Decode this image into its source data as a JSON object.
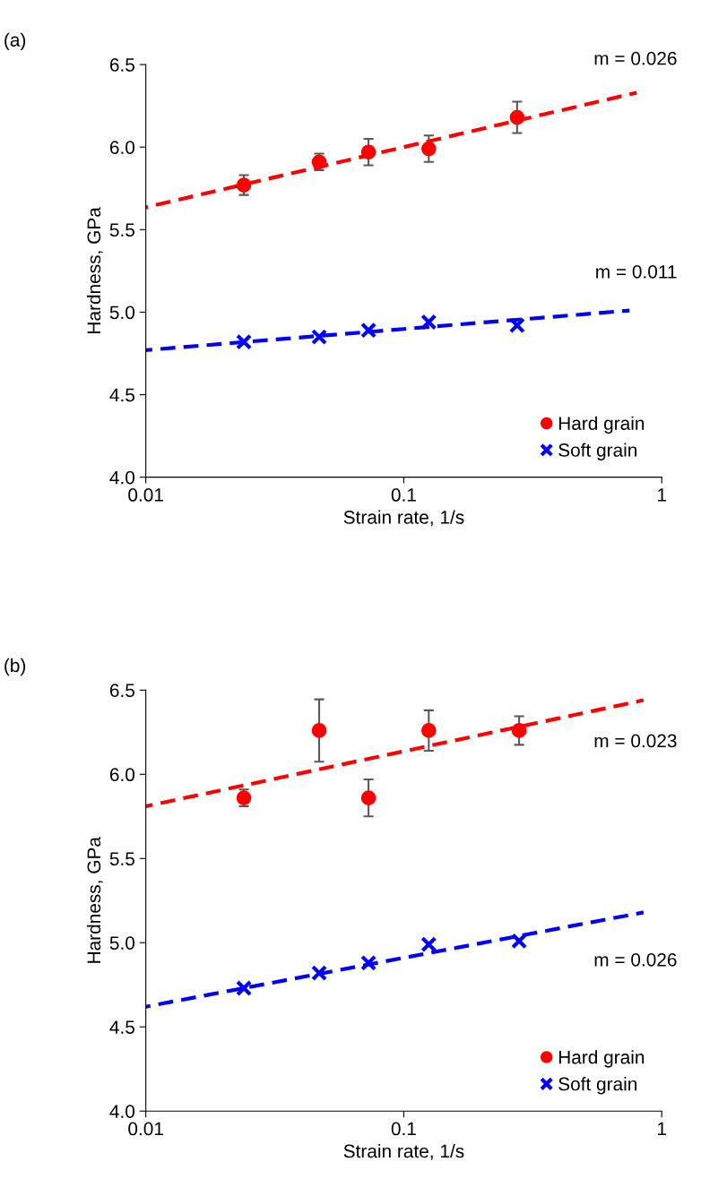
{
  "chart_data": [
    {
      "type": "scatter",
      "title": "(a)",
      "xlabel": "Strain rate, 1/s",
      "ylabel": "Hardness, GPa",
      "log": "x",
      "grid": false,
      "legend": "bottom right",
      "xlim": [
        0.01,
        1
      ],
      "xticks": [
        0.01,
        0.1,
        1
      ],
      "ylim": [
        4.0,
        6.5
      ],
      "yticks": [
        {
          "value": 4.0,
          "label": "4.0"
        },
        {
          "value": 4.5,
          "label": "4.5"
        },
        {
          "value": 5.0,
          "label": "5.0"
        },
        {
          "value": 5.5,
          "label": "5.5"
        },
        {
          "value": 6.0,
          "label": "6.0"
        },
        {
          "value": 6.5,
          "label": "6.5"
        }
      ],
      "x": [
        0.024,
        0.047,
        0.073,
        0.125,
        0.275
      ],
      "series": [
        {
          "name": "Hard grain",
          "marker": "circle",
          "color": "#ff0000",
          "values": [
            5.77,
            5.91,
            5.97,
            5.99,
            6.18
          ],
          "errors": [
            0.06,
            0.05,
            0.08,
            0.08,
            0.095
          ]
        },
        {
          "name": "Soft grain",
          "marker": "cross",
          "color": "#0000ff",
          "values": [
            4.82,
            4.85,
            4.89,
            4.94,
            4.92
          ]
        },
        {
          "type": "line",
          "line_style": "dashed",
          "marker": "none",
          "color": "#ff0000",
          "x": [
            0.01,
            0.8
          ],
          "values": [
            5.635,
            6.33
          ]
        },
        {
          "type": "line",
          "line_style": "dashed",
          "marker": "none",
          "color": "#0000ff",
          "x": [
            0.01,
            0.75
          ],
          "values": [
            4.77,
            5.01
          ]
        }
      ],
      "annotations": [
        "m = 0.026",
        "m = 0.011"
      ]
    },
    {
      "type": "scatter",
      "title": "(b)",
      "xlabel": "Strain rate, 1/s",
      "ylabel": "Hardness, GPa",
      "log": "x",
      "grid": false,
      "legend": "bottom right",
      "xlim": [
        0.01,
        1
      ],
      "xticks": [
        0.01,
        0.1,
        1
      ],
      "ylim": [
        4.0,
        6.5
      ],
      "yticks": [
        {
          "value": 4.0,
          "label": "4.0"
        },
        {
          "value": 4.5,
          "label": "4.5"
        },
        {
          "value": 5.0,
          "label": "5.0"
        },
        {
          "value": 5.5,
          "label": "5.5"
        },
        {
          "value": 6.0,
          "label": "6.0"
        },
        {
          "value": 6.5,
          "label": "6.5"
        }
      ],
      "x": [
        0.024,
        0.047,
        0.073,
        0.125,
        0.28
      ],
      "series": [
        {
          "name": "Hard grain",
          "marker": "circle",
          "color": "#ff0000",
          "values": [
            5.86,
            6.26,
            5.86,
            6.26,
            6.26
          ],
          "errors": [
            0.05,
            0.185,
            0.11,
            0.12,
            0.085
          ]
        },
        {
          "name": "Soft grain",
          "marker": "cross",
          "color": "#0000ff",
          "values": [
            4.73,
            4.82,
            4.88,
            4.99,
            5.01
          ]
        },
        {
          "type": "line",
          "line_style": "dashed",
          "marker": "none",
          "color": "#ff0000",
          "x": [
            0.01,
            0.85
          ],
          "values": [
            5.81,
            6.44
          ]
        },
        {
          "type": "line",
          "line_style": "dashed",
          "marker": "none",
          "color": "#0000ff",
          "x": [
            0.01,
            0.85
          ],
          "values": [
            4.62,
            5.18
          ]
        }
      ],
      "annotations": [
        "m = 0.023",
        "m = 0.026"
      ]
    }
  ]
}
